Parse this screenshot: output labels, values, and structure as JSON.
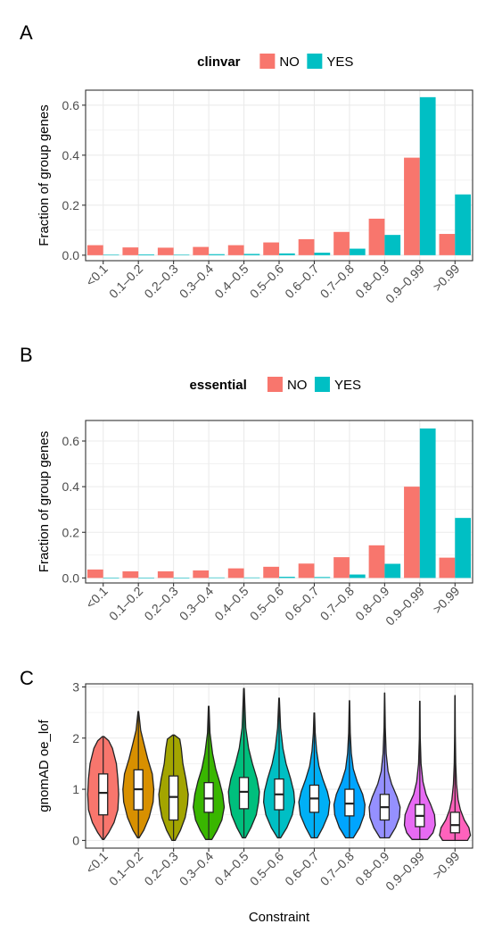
{
  "colors": {
    "no": "#F8766D",
    "yes": "#00BFC4",
    "violins": [
      "#F8766D",
      "#D89000",
      "#A3A500",
      "#39B600",
      "#00BF7D",
      "#00BFC4",
      "#00B0F6",
      "#00A5FF",
      "#9590FF",
      "#E76BF3",
      "#FF62BC"
    ]
  },
  "chart_data": [
    {
      "panel_label": "A",
      "type": "bar",
      "legend_title": "clinvar",
      "legend_position": "top",
      "categories": [
        "<0.1",
        "0.1–0.2",
        "0.2–0.3",
        "0.3–0.4",
        "0.4–0.5",
        "0.5–0.6",
        "0.6–0.7",
        "0.7–0.8",
        "0.8–0.9",
        "0.9–0.99",
        ">0.99"
      ],
      "series": [
        {
          "name": "NO",
          "values": [
            0.04,
            0.031,
            0.03,
            0.033,
            0.04,
            0.051,
            0.064,
            0.093,
            0.146,
            0.39,
            0.085
          ]
        },
        {
          "name": "YES",
          "values": [
            0.002,
            0.003,
            0.002,
            0.004,
            0.005,
            0.007,
            0.01,
            0.026,
            0.081,
            0.632,
            0.243
          ]
        }
      ],
      "ylabel": "Fraction of group genes",
      "xlabel": "",
      "ylim": [
        -0.022,
        0.66
      ],
      "yticks": [
        "0.0",
        "0.2",
        "0.4",
        "0.6"
      ],
      "grid": true
    },
    {
      "panel_label": "B",
      "type": "bar",
      "legend_title": "essential",
      "legend_position": "top",
      "categories": [
        "<0.1",
        "0.1–0.2",
        "0.2–0.3",
        "0.3–0.4",
        "0.4–0.5",
        "0.5–0.6",
        "0.6–0.7",
        "0.7–0.8",
        "0.8–0.9",
        "0.9–0.99",
        ">0.99"
      ],
      "series": [
        {
          "name": "NO",
          "values": [
            0.037,
            0.029,
            0.029,
            0.033,
            0.042,
            0.049,
            0.063,
            0.091,
            0.143,
            0.4,
            0.089
          ]
        },
        {
          "name": "YES",
          "values": [
            0.0,
            0.0,
            0.0,
            0.002,
            0.002,
            0.005,
            0.004,
            0.015,
            0.062,
            0.655,
            0.263
          ]
        }
      ],
      "ylabel": "Fraction of group genes",
      "xlabel": "",
      "ylim": [
        -0.022,
        0.69
      ],
      "yticks": [
        "0.0",
        "0.2",
        "0.4",
        "0.6"
      ],
      "grid": true
    },
    {
      "panel_label": "C",
      "type": "violin",
      "categories": [
        "<0.1",
        "0.1–0.2",
        "0.2–0.3",
        "0.3–0.4",
        "0.4–0.5",
        "0.5–0.6",
        "0.6–0.7",
        "0.7–0.8",
        "0.8–0.9",
        "0.9–0.99",
        ">0.99"
      ],
      "violins": [
        {
          "min": 0.02,
          "max": 2.03,
          "q1": 0.5,
          "median": 0.93,
          "q3": 1.3,
          "density": [
            [
              0.02,
              0.05
            ],
            [
              0.15,
              0.35
            ],
            [
              0.35,
              0.7
            ],
            [
              0.6,
              0.95
            ],
            [
              0.9,
              1.0
            ],
            [
              1.2,
              0.95
            ],
            [
              1.5,
              0.85
            ],
            [
              1.8,
              0.6
            ],
            [
              1.95,
              0.35
            ],
            [
              2.03,
              0.05
            ]
          ]
        },
        {
          "min": 0.05,
          "max": 2.52,
          "q1": 0.6,
          "median": 1.0,
          "q3": 1.38,
          "density": [
            [
              0.05,
              0.05
            ],
            [
              0.2,
              0.35
            ],
            [
              0.45,
              0.7
            ],
            [
              0.75,
              0.95
            ],
            [
              1.0,
              1.0
            ],
            [
              1.3,
              0.9
            ],
            [
              1.6,
              0.6
            ],
            [
              1.9,
              0.35
            ],
            [
              2.15,
              0.15
            ],
            [
              2.52,
              0.02
            ]
          ]
        },
        {
          "min": 0.0,
          "max": 2.06,
          "q1": 0.4,
          "median": 0.85,
          "q3": 1.26,
          "density": [
            [
              0.0,
              0.1
            ],
            [
              0.2,
              0.45
            ],
            [
              0.45,
              0.75
            ],
            [
              0.7,
              0.9
            ],
            [
              0.9,
              0.95
            ],
            [
              1.2,
              0.8
            ],
            [
              1.5,
              0.6
            ],
            [
              1.8,
              0.5
            ],
            [
              1.98,
              0.4
            ],
            [
              2.06,
              0.05
            ]
          ]
        },
        {
          "min": 0.02,
          "max": 2.62,
          "q1": 0.55,
          "median": 0.82,
          "q3": 1.13,
          "density": [
            [
              0.02,
              0.2
            ],
            [
              0.2,
              0.55
            ],
            [
              0.4,
              0.85
            ],
            [
              0.65,
              1.0
            ],
            [
              0.9,
              0.9
            ],
            [
              1.15,
              0.7
            ],
            [
              1.4,
              0.45
            ],
            [
              1.7,
              0.25
            ],
            [
              2.1,
              0.08
            ],
            [
              2.62,
              0.02
            ]
          ]
        },
        {
          "min": 0.05,
          "max": 2.97,
          "q1": 0.62,
          "median": 0.95,
          "q3": 1.23,
          "density": [
            [
              0.05,
              0.1
            ],
            [
              0.25,
              0.45
            ],
            [
              0.5,
              0.8
            ],
            [
              0.75,
              0.95
            ],
            [
              0.95,
              1.0
            ],
            [
              1.2,
              0.85
            ],
            [
              1.5,
              0.55
            ],
            [
              1.8,
              0.3
            ],
            [
              2.2,
              0.12
            ],
            [
              2.97,
              0.02
            ]
          ]
        },
        {
          "min": 0.05,
          "max": 2.78,
          "q1": 0.6,
          "median": 0.9,
          "q3": 1.2,
          "density": [
            [
              0.05,
              0.1
            ],
            [
              0.25,
              0.5
            ],
            [
              0.5,
              0.85
            ],
            [
              0.75,
              1.0
            ],
            [
              0.95,
              0.95
            ],
            [
              1.2,
              0.75
            ],
            [
              1.5,
              0.45
            ],
            [
              1.8,
              0.25
            ],
            [
              2.2,
              0.1
            ],
            [
              2.78,
              0.02
            ]
          ]
        },
        {
          "min": 0.05,
          "max": 2.49,
          "q1": 0.55,
          "median": 0.82,
          "q3": 1.08,
          "density": [
            [
              0.05,
              0.2
            ],
            [
              0.25,
              0.55
            ],
            [
              0.5,
              0.9
            ],
            [
              0.75,
              1.0
            ],
            [
              0.95,
              0.85
            ],
            [
              1.2,
              0.55
            ],
            [
              1.45,
              0.3
            ],
            [
              1.75,
              0.15
            ],
            [
              2.1,
              0.06
            ],
            [
              2.49,
              0.02
            ]
          ]
        },
        {
          "min": 0.05,
          "max": 2.73,
          "q1": 0.48,
          "median": 0.72,
          "q3": 1.0,
          "density": [
            [
              0.05,
              0.25
            ],
            [
              0.25,
              0.65
            ],
            [
              0.5,
              0.95
            ],
            [
              0.7,
              1.0
            ],
            [
              0.9,
              0.85
            ],
            [
              1.15,
              0.5
            ],
            [
              1.4,
              0.25
            ],
            [
              1.7,
              0.12
            ],
            [
              2.1,
              0.05
            ],
            [
              2.73,
              0.01
            ]
          ]
        },
        {
          "min": 0.05,
          "max": 2.88,
          "q1": 0.4,
          "median": 0.65,
          "q3": 0.9,
          "density": [
            [
              0.05,
              0.3
            ],
            [
              0.25,
              0.7
            ],
            [
              0.45,
              0.95
            ],
            [
              0.65,
              1.0
            ],
            [
              0.85,
              0.8
            ],
            [
              1.1,
              0.45
            ],
            [
              1.35,
              0.22
            ],
            [
              1.7,
              0.1
            ],
            [
              2.2,
              0.04
            ],
            [
              2.88,
              0.01
            ]
          ]
        },
        {
          "min": 0.02,
          "max": 2.72,
          "q1": 0.27,
          "median": 0.48,
          "q3": 0.7,
          "density": [
            [
              0.02,
              0.5
            ],
            [
              0.15,
              0.85
            ],
            [
              0.3,
              1.0
            ],
            [
              0.5,
              0.95
            ],
            [
              0.7,
              0.7
            ],
            [
              0.9,
              0.4
            ],
            [
              1.15,
              0.2
            ],
            [
              1.5,
              0.08
            ],
            [
              2.0,
              0.03
            ],
            [
              2.72,
              0.01
            ]
          ]
        },
        {
          "min": 0.0,
          "max": 2.83,
          "q1": 0.15,
          "median": 0.3,
          "q3": 0.55,
          "density": [
            [
              0.0,
              0.8
            ],
            [
              0.1,
              1.0
            ],
            [
              0.25,
              0.9
            ],
            [
              0.4,
              0.6
            ],
            [
              0.6,
              0.35
            ],
            [
              0.8,
              0.2
            ],
            [
              1.1,
              0.1
            ],
            [
              1.5,
              0.05
            ],
            [
              2.1,
              0.02
            ],
            [
              2.83,
              0.01
            ]
          ]
        }
      ],
      "ylabel": "gnomAD oe_lof",
      "xlabel": "Constraint",
      "ylim": [
        -0.15,
        3.06
      ],
      "yticks": [
        "0",
        "1",
        "2",
        "3"
      ],
      "grid": true
    }
  ]
}
